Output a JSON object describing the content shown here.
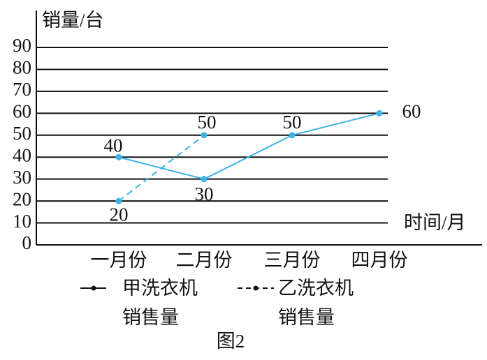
{
  "chart_data": {
    "type": "line",
    "caption": "图2",
    "y_label": "销量/台",
    "x_label": "时间/月",
    "categories": [
      "一月份",
      "二月份",
      "三月份",
      "四月份"
    ],
    "series": [
      {
        "name": "甲洗衣机销售量",
        "color": "#3cb4e6",
        "dash": false,
        "values": [
          40,
          30,
          50,
          60
        ]
      },
      {
        "name": "乙洗衣机销售量",
        "color": "#3cb4e6",
        "dash": true,
        "values": [
          20,
          50,
          null,
          null
        ]
      }
    ],
    "ylim": [
      0,
      90
    ],
    "yticks": [
      0,
      10,
      20,
      30,
      40,
      50,
      60,
      70,
      80,
      90
    ],
    "grid": true
  }
}
